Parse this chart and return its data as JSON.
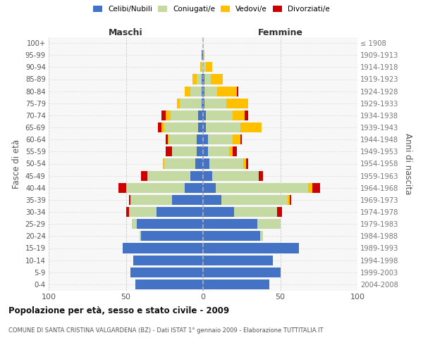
{
  "age_groups": [
    "0-4",
    "5-9",
    "10-14",
    "15-19",
    "20-24",
    "25-29",
    "30-34",
    "35-39",
    "40-44",
    "45-49",
    "50-54",
    "55-59",
    "60-64",
    "65-69",
    "70-74",
    "75-79",
    "80-84",
    "85-89",
    "90-94",
    "95-99",
    "100+"
  ],
  "birth_years": [
    "2004-2008",
    "1999-2003",
    "1994-1998",
    "1989-1993",
    "1984-1988",
    "1979-1983",
    "1974-1978",
    "1969-1973",
    "1964-1968",
    "1959-1963",
    "1954-1958",
    "1949-1953",
    "1944-1948",
    "1939-1943",
    "1934-1938",
    "1929-1933",
    "1924-1928",
    "1919-1923",
    "1914-1918",
    "1909-1913",
    "≤ 1908"
  ],
  "maschi": {
    "celibi": [
      44,
      47,
      45,
      52,
      40,
      43,
      30,
      20,
      12,
      8,
      5,
      4,
      4,
      3,
      3,
      1,
      1,
      1,
      0,
      1,
      0
    ],
    "coniugati": [
      0,
      0,
      0,
      0,
      1,
      3,
      18,
      27,
      38,
      28,
      20,
      16,
      18,
      22,
      18,
      14,
      7,
      3,
      1,
      0,
      0
    ],
    "vedovi": [
      0,
      0,
      0,
      0,
      0,
      0,
      0,
      0,
      0,
      0,
      1,
      0,
      1,
      2,
      3,
      2,
      4,
      3,
      1,
      0,
      0
    ],
    "divorziati": [
      0,
      0,
      0,
      0,
      0,
      0,
      2,
      1,
      5,
      4,
      0,
      4,
      1,
      2,
      3,
      0,
      0,
      0,
      0,
      0,
      0
    ]
  },
  "femmine": {
    "nubili": [
      43,
      50,
      45,
      62,
      37,
      35,
      20,
      12,
      8,
      6,
      4,
      3,
      3,
      2,
      2,
      1,
      1,
      1,
      0,
      0,
      0
    ],
    "coniugate": [
      0,
      0,
      0,
      0,
      2,
      15,
      28,
      43,
      60,
      30,
      22,
      14,
      16,
      22,
      17,
      14,
      8,
      4,
      2,
      0,
      0
    ],
    "vedove": [
      0,
      0,
      0,
      0,
      0,
      0,
      0,
      1,
      3,
      0,
      2,
      2,
      5,
      14,
      8,
      14,
      13,
      8,
      4,
      1,
      0
    ],
    "divorziate": [
      0,
      0,
      0,
      0,
      0,
      0,
      3,
      1,
      5,
      3,
      1,
      3,
      1,
      0,
      2,
      0,
      1,
      0,
      0,
      0,
      0
    ]
  },
  "color_celibi": "#4472c4",
  "color_coniugati": "#c5d9a3",
  "color_vedovi": "#ffc000",
  "color_divorziati": "#cc0000",
  "xlim": 100,
  "title": "Popolazione per età, sesso e stato civile - 2009",
  "subtitle": "COMUNE DI SANTA CRISTINA VALGARDENA (BZ) - Dati ISTAT 1° gennaio 2009 - Elaborazione TUTTITALIA.IT",
  "ylabel_left": "Fasce di età",
  "ylabel_right": "Anni di nascita",
  "xlabel_maschi": "Maschi",
  "xlabel_femmine": "Femmine"
}
